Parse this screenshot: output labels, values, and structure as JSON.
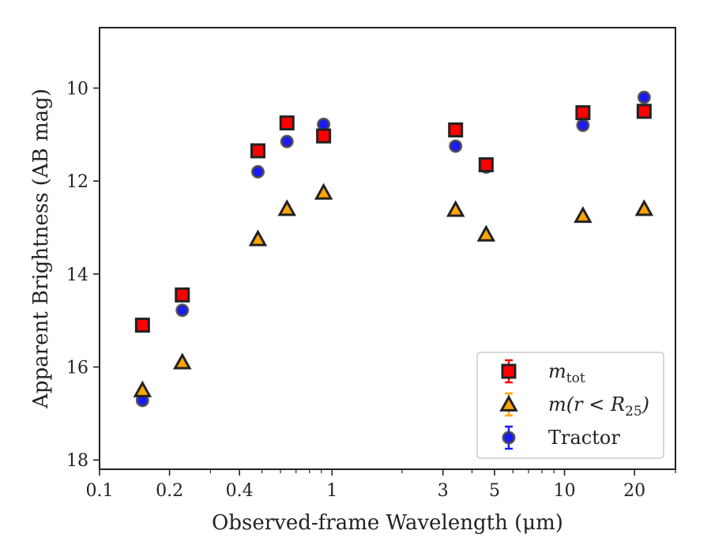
{
  "chart_data": {
    "type": "scatter",
    "xlabel": "Observed-frame Wavelength (μm)",
    "ylabel": "Apparent Brightness (AB mag)",
    "x_scale": "log",
    "xlim": [
      0.1,
      30
    ],
    "ylim": [
      18.2,
      8.7
    ],
    "y_inverted": true,
    "x_ticks": [
      {
        "value": 0.1,
        "label": "0.1"
      },
      {
        "value": 0.2,
        "label": "0.2"
      },
      {
        "value": 0.4,
        "label": "0.4"
      },
      {
        "value": 1,
        "label": "1"
      },
      {
        "value": 3,
        "label": "3"
      },
      {
        "value": 5,
        "label": "5"
      },
      {
        "value": 10,
        "label": "10"
      },
      {
        "value": 20,
        "label": "20"
      }
    ],
    "y_ticks": [
      {
        "value": 10,
        "label": "10"
      },
      {
        "value": 12,
        "label": "12"
      },
      {
        "value": 14,
        "label": "14"
      },
      {
        "value": 16,
        "label": "16"
      },
      {
        "value": 18,
        "label": "18"
      }
    ],
    "grid": false,
    "legend_position": "lower-right",
    "series": [
      {
        "name": "m_tot",
        "label_main": "m",
        "label_sub": "tot",
        "marker": "square",
        "color": "#ff0000",
        "edge_color": "#222222",
        "x": [
          0.153,
          0.227,
          0.48,
          0.64,
          0.92,
          3.4,
          4.6,
          12.0,
          22.0
        ],
        "y": [
          15.1,
          14.45,
          11.35,
          10.75,
          11.03,
          10.9,
          11.65,
          10.53,
          10.5
        ]
      },
      {
        "name": "m(r < R25)",
        "label_main": "m(r < R",
        "label_sub": "25",
        "label_tail": ")",
        "marker": "triangle",
        "color": "#ffa500",
        "edge_color": "#222222",
        "x": [
          0.153,
          0.227,
          0.48,
          0.64,
          0.92,
          3.4,
          4.6,
          12.0,
          22.0
        ],
        "y": [
          16.5,
          15.9,
          13.25,
          12.6,
          12.25,
          12.62,
          13.15,
          12.75,
          12.6
        ]
      },
      {
        "name": "Tractor",
        "label_main": "Tractor",
        "marker": "circle",
        "color": "#1a1aff",
        "edge_color": "#444444",
        "x": [
          0.153,
          0.227,
          0.48,
          0.64,
          0.92,
          3.4,
          4.6,
          12.0,
          22.0
        ],
        "y": [
          16.72,
          14.78,
          11.8,
          11.15,
          10.78,
          11.25,
          11.7,
          10.8,
          10.2
        ]
      }
    ]
  }
}
